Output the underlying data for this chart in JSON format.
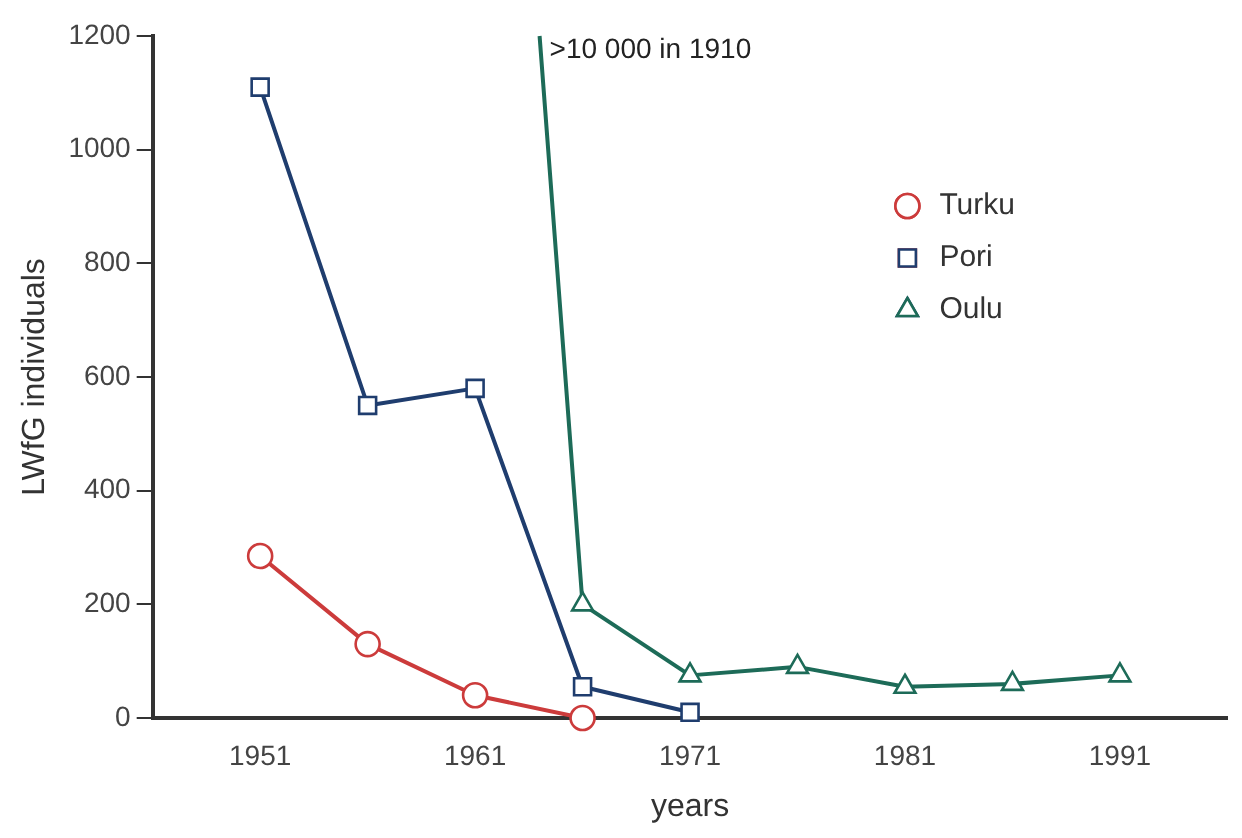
{
  "chart_data": {
    "type": "line",
    "xlabel": "years",
    "ylabel": "LWfG individuals",
    "xlim": [
      1946,
      1996
    ],
    "xticks": [
      1951,
      1961,
      1971,
      1981,
      1991
    ],
    "ylim": [
      0,
      1200
    ],
    "yticks": [
      0,
      200,
      400,
      600,
      800,
      1000,
      1200
    ],
    "grid": false,
    "legend": "top right",
    "series": [
      {
        "name": "Turku",
        "color": "#cc3b3b",
        "marker": "circle",
        "x": [
          1951,
          1956,
          1961,
          1966
        ],
        "values": [
          285,
          130,
          40,
          0
        ]
      },
      {
        "name": "Pori",
        "color": "#1f3d6e",
        "marker": "square",
        "x": [
          1951,
          1956,
          1961,
          1966,
          1971
        ],
        "values": [
          1110,
          550,
          580,
          55,
          10
        ]
      },
      {
        "name": "Oulu",
        "color": "#1d6b58",
        "marker": "triangle",
        "x": [
          1964,
          1966,
          1971,
          1976,
          1981,
          1986,
          1991
        ],
        "values": [
          1200,
          200,
          75,
          90,
          55,
          60,
          75
        ]
      }
    ],
    "annotations": [
      {
        "text": ">10 000 in 1910",
        "x": 1964,
        "y": 1200
      }
    ]
  }
}
